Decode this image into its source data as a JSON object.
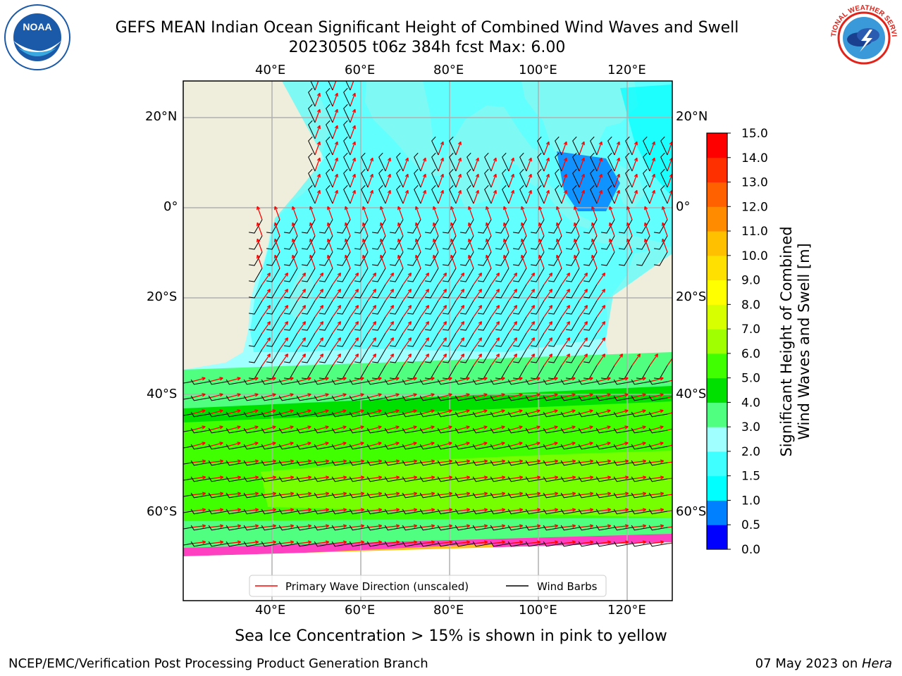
{
  "header": {
    "title_line1": "GEFS MEAN Indian Ocean Significant Height of Combined Wind Waves and Swell",
    "title_line2": "20230505 t06z 384h fcst   Max: 6.00"
  },
  "logos": {
    "left": {
      "name": "noaa-logo",
      "text": "NOAA",
      "ring_text": "NATIONAL OCEANIC AND ATMOSPHERIC ADMINISTRATION · U.S. DEPARTMENT OF COMMERCE",
      "color": "#1b5aa8"
    },
    "right": {
      "name": "nws-logo",
      "ring_text": "NATIONAL WEATHER SERVICE",
      "color": "#e2231a"
    }
  },
  "map": {
    "lon_labels": [
      "40°E",
      "60°E",
      "80°E",
      "100°E",
      "120°E"
    ],
    "lat_labels": [
      "20°N",
      "0°",
      "20°S",
      "40°S",
      "60°S"
    ],
    "colors": {
      "land": "#efeedd",
      "ice": "#ffffff",
      "grid": "#b0b0b0",
      "wave_arrow": "#ff0000",
      "wind_barb": "#000000"
    },
    "legend": {
      "wave_label": "Primary Wave Direction (unscaled)",
      "wind_label": "Wind Barbs"
    }
  },
  "colorbar": {
    "label_line1": "Significant Height of Combined",
    "label_line2": "Wind Waves and Swell [m]",
    "ticks": [
      "0.0",
      "0.5",
      "1.0",
      "1.5",
      "2.0",
      "3.0",
      "4.0",
      "5.0",
      "6.0",
      "7.0",
      "8.0",
      "9.0",
      "10.0",
      "11.0",
      "12.0",
      "13.0",
      "14.0",
      "15.0"
    ],
    "colors": [
      "#0000ff",
      "#0080ff",
      "#00ffff",
      "#40ffff",
      "#a0ffff",
      "#50ff80",
      "#00e000",
      "#40ff00",
      "#a0ff00",
      "#d8ff00",
      "#ffff00",
      "#ffe000",
      "#ffc000",
      "#ff8c00",
      "#ff6000",
      "#ff3000",
      "#ff0000"
    ]
  },
  "notes": {
    "ice_note": "Sea Ice Concentration > 15% is shown in pink to yellow"
  },
  "footer": {
    "left": "NCEP/EMC/Verification Post Processing Product Generation Branch",
    "right_prefix": "07 May 2023 on ",
    "right_host": "Hera"
  }
}
